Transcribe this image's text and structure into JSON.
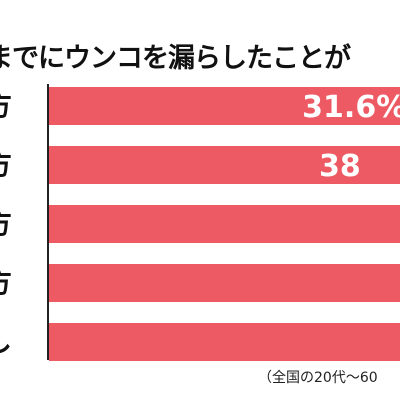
{
  "chart_data": {
    "type": "bar",
    "orientation": "horizontal",
    "title": "までにウンコを漏らしたことが",
    "categories": [
      "方",
      "方",
      "方",
      "方",
      "し"
    ],
    "series": [
      {
        "values": [
          31.6,
          38,
          null,
          null,
          null
        ]
      }
    ],
    "data_labels": [
      "31.6%",
      "38",
      "",
      "",
      ""
    ],
    "xlim": [
      0,
      100
    ],
    "bar_color": "#ee5a63",
    "label_color": "#ffffff",
    "footnote": "（全国の20代～60"
  }
}
